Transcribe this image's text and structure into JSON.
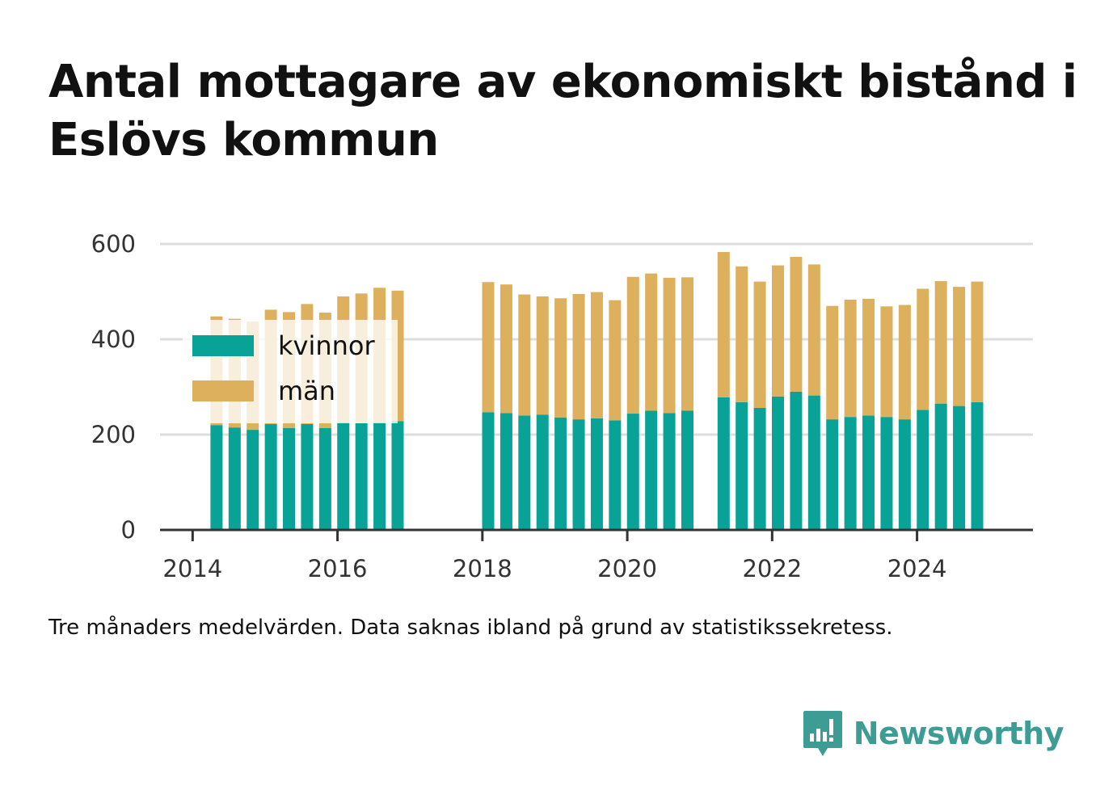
{
  "title": "Antal mottagare av ekonomiskt bistånd i Eslövs kommun",
  "note": "Tre månaders medelvärden. Data saknas ibland på grund av statistikssekretess.",
  "brand": {
    "name": "Newsworthy",
    "icon": "newsworthy-logo-icon"
  },
  "colors": {
    "kvinnor": "#08a296",
    "man": "#dcb05c",
    "grid": "#dddddd",
    "axis": "#333333"
  },
  "chart_data": {
    "type": "bar",
    "stacked": true,
    "xlim": [
      2013.55,
      2025.6
    ],
    "ylim": [
      0,
      600
    ],
    "y_ticks": [
      0,
      200,
      400,
      600
    ],
    "x_ticks": [
      2014,
      2016,
      2018,
      2020,
      2022,
      2024
    ],
    "grid": true,
    "legend_position": "top-left",
    "series": [
      {
        "name": "kvinnor",
        "color": "#08a296"
      },
      {
        "name": "män",
        "color": "#dcb05c"
      }
    ],
    "x": [
      2014.33,
      2014.58,
      2014.83,
      2015.08,
      2015.33,
      2015.58,
      2015.83,
      2016.08,
      2016.33,
      2016.58,
      2016.83,
      2018.08,
      2018.33,
      2018.58,
      2018.83,
      2019.08,
      2019.33,
      2019.58,
      2019.83,
      2020.08,
      2020.33,
      2020.58,
      2020.83,
      2021.33,
      2021.58,
      2021.83,
      2022.08,
      2022.33,
      2022.58,
      2022.83,
      2023.08,
      2023.33,
      2023.58,
      2023.83,
      2024.08,
      2024.33,
      2024.58,
      2024.83
    ],
    "kvinnor": [
      220,
      215,
      210,
      222,
      214,
      222,
      214,
      226,
      224,
      226,
      228,
      247,
      245,
      240,
      242,
      236,
      232,
      234,
      230,
      244,
      250,
      245,
      250,
      278,
      268,
      256,
      280,
      290,
      282,
      232,
      237,
      240,
      237,
      232,
      252,
      265,
      260,
      268
    ],
    "man": [
      228,
      228,
      227,
      240,
      243,
      252,
      242,
      264,
      272,
      282,
      274,
      273,
      270,
      254,
      248,
      250,
      263,
      265,
      252,
      287,
      288,
      284,
      280,
      305,
      285,
      265,
      275,
      283,
      275,
      238,
      246,
      245,
      232,
      240,
      254,
      257,
      250,
      253
    ]
  }
}
